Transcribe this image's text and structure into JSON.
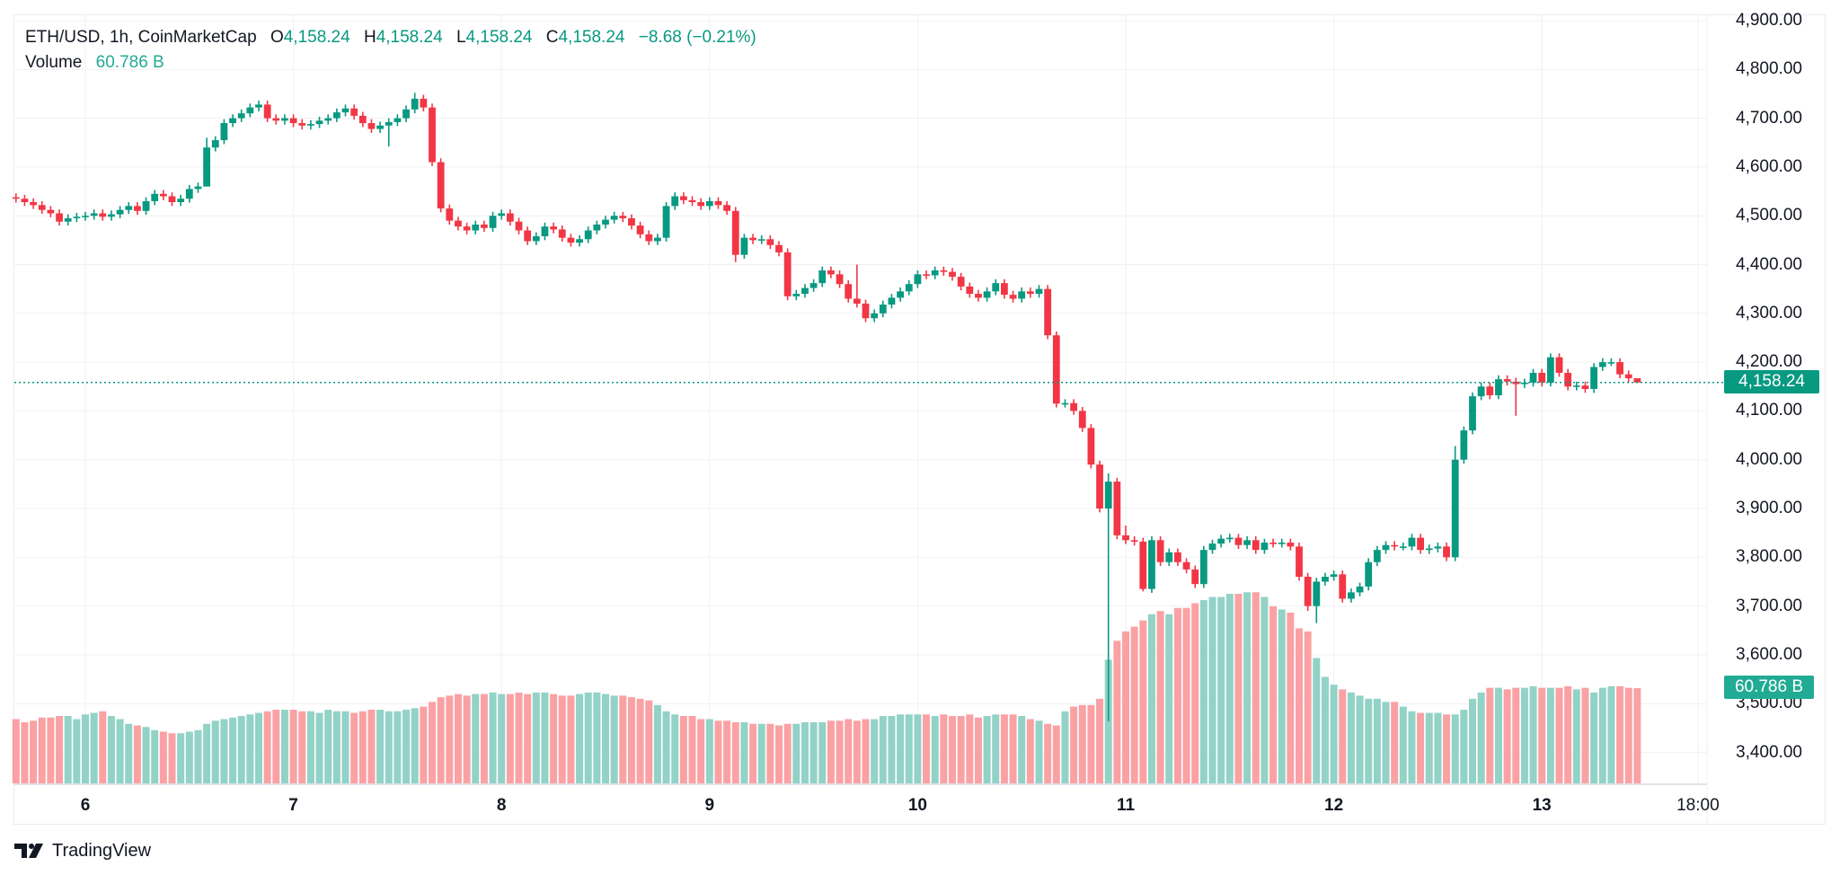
{
  "legend": {
    "symbol": "ETH/USD, 1h, CoinMarketCap",
    "o_label": "O",
    "o_value": "4,158.24",
    "h_label": "H",
    "h_value": "4,158.24",
    "l_label": "L",
    "l_value": "4,158.24",
    "c_label": "C",
    "c_value": "4,158.24",
    "change": "−8.68 (−0.21%)",
    "volume_label": "Volume",
    "volume_value": "60.786 B"
  },
  "price_tag": "4,158.24",
  "volume_tag": "60.786 B",
  "branding": "TradingView",
  "colors": {
    "up": "#089981",
    "down": "#f23645",
    "vol_up": "#92d2c7",
    "vol_down": "#faa1a4",
    "grid": "#f0f1f4",
    "last_price_line": "#089981"
  },
  "chart_data": {
    "type": "candlestick",
    "title": "ETH/USD, 1h, CoinMarketCap",
    "interval": "1h",
    "ylim": [
      3340,
      4910
    ],
    "y_ticks": [
      "4,900.00",
      "4,800.00",
      "4,700.00",
      "4,600.00",
      "4,500.00",
      "4,400.00",
      "4,300.00",
      "4,200.00",
      "4,100.00",
      "4,000.00",
      "3,900.00",
      "3,800.00",
      "3,700.00",
      "3,600.00",
      "3,500.00",
      "3,400.00"
    ],
    "y_tick_values": [
      4900,
      4800,
      4700,
      4600,
      4500,
      4400,
      4300,
      4200,
      4100,
      4000,
      3900,
      3800,
      3700,
      3600,
      3500,
      3400
    ],
    "x_ticks": [
      {
        "label": "6",
        "index": 8
      },
      {
        "label": "7",
        "index": 32
      },
      {
        "label": "8",
        "index": 56
      },
      {
        "label": "9",
        "index": 80
      },
      {
        "label": "10",
        "index": 104
      },
      {
        "label": "11",
        "index": 128
      },
      {
        "label": "12",
        "index": 152
      },
      {
        "label": "13",
        "index": 176
      },
      {
        "label": "18:00",
        "index": 194
      }
    ],
    "last_price": 4158.24,
    "grid": true,
    "close": [
      4535,
      4528,
      4522,
      4512,
      4505,
      4488,
      4495,
      4498,
      4500,
      4505,
      4498,
      4503,
      4512,
      4520,
      4510,
      4530,
      4545,
      4540,
      4528,
      4535,
      4555,
      4560,
      4640,
      4655,
      4690,
      4700,
      4710,
      4722,
      4728,
      4700,
      4695,
      4700,
      4690,
      4685,
      4688,
      4695,
      4700,
      4712,
      4720,
      4705,
      4690,
      4678,
      4685,
      4692,
      4700,
      4718,
      4740,
      4722,
      4610,
      4515,
      4490,
      4478,
      4470,
      4482,
      4475,
      4500,
      4505,
      4488,
      4470,
      4448,
      4458,
      4478,
      4472,
      4455,
      4445,
      4452,
      4470,
      4482,
      4492,
      4500,
      4495,
      4480,
      4462,
      4448,
      4455,
      4520,
      4540,
      4532,
      4528,
      4520,
      4530,
      4522,
      4510,
      4420,
      4455,
      4450,
      4452,
      4440,
      4425,
      4335,
      4340,
      4352,
      4362,
      4388,
      4380,
      4360,
      4330,
      4320,
      4290,
      4300,
      4318,
      4332,
      4345,
      4360,
      4380,
      4378,
      4388,
      4385,
      4375,
      4355,
      4340,
      4332,
      4345,
      4362,
      4338,
      4330,
      4345,
      4340,
      4350,
      4255,
      4115,
      4116,
      4100,
      4065,
      3990,
      3900,
      3955,
      3845,
      3835,
      3832,
      3735,
      3835,
      3790,
      3810,
      3790,
      3775,
      3745,
      3815,
      3828,
      3838,
      3840,
      3825,
      3835,
      3815,
      3830,
      3828,
      3830,
      3822,
      3760,
      3700,
      3750,
      3760,
      3765,
      3715,
      3728,
      3740,
      3790,
      3815,
      3825,
      3822,
      3822,
      3840,
      3815,
      3818,
      3822,
      3800,
      4000,
      4060,
      4130,
      4150,
      4132,
      4165,
      4160,
      4155,
      4158,
      4178,
      4158,
      4210,
      4178,
      4150,
      4152,
      4145,
      4190,
      4200,
      4200,
      4175,
      4166.92,
      4158.24
    ],
    "open_first": 4538,
    "high_extra": 8,
    "low_extra": 8,
    "wick_overrides": [
      {
        "index": 22,
        "high": 4660,
        "low": 4560
      },
      {
        "index": 46,
        "high": 4752
      },
      {
        "index": 43,
        "low": 4642
      },
      {
        "index": 83,
        "low": 4405
      },
      {
        "index": 97,
        "high": 4400
      },
      {
        "index": 126,
        "high": 3972,
        "low": 3464
      },
      {
        "index": 128,
        "high": 3865
      },
      {
        "index": 130,
        "low": 3730
      },
      {
        "index": 149,
        "low": 3690
      },
      {
        "index": 150,
        "low": 3665
      },
      {
        "index": 166,
        "high": 4028
      },
      {
        "index": 173,
        "low": 4090
      },
      {
        "index": 177,
        "high": 4218
      },
      {
        "index": 187,
        "high": 4158.24,
        "low": 4158.24
      }
    ],
    "volume_unit": "B",
    "volume": [
      41,
      39,
      40,
      42,
      42,
      43,
      43,
      41,
      44,
      45,
      46,
      43,
      41,
      38,
      37,
      36,
      34,
      33,
      32,
      32,
      33,
      34,
      38,
      40,
      41,
      42,
      43,
      44,
      45,
      46,
      47,
      47,
      47,
      46,
      46,
      45,
      47,
      46,
      46,
      45,
      46,
      47,
      47,
      46,
      46,
      47,
      48,
      49,
      52,
      55,
      56,
      57,
      56,
      57,
      57,
      58,
      57,
      57,
      58,
      57,
      58,
      58,
      57,
      56,
      56,
      57,
      58,
      58,
      57,
      56,
      56,
      55,
      54,
      53,
      50,
      46,
      44,
      43,
      43,
      41,
      41,
      40,
      40,
      39,
      39,
      38,
      38,
      38,
      37,
      38,
      38,
      39,
      39,
      39,
      40,
      40,
      41,
      40,
      41,
      41,
      43,
      43,
      44,
      44,
      44,
      44,
      43,
      44,
      43,
      43,
      44,
      42,
      43,
      44,
      44,
      44,
      43,
      41,
      40,
      38,
      37,
      46,
      49,
      50,
      50,
      54,
      79,
      91,
      97,
      100,
      104,
      108,
      110,
      108,
      112,
      112,
      115,
      117,
      119,
      119,
      121,
      121,
      122,
      122,
      119,
      113,
      111,
      109,
      99,
      97,
      80,
      68,
      63,
      60,
      58,
      56,
      54,
      54,
      52,
      52,
      49,
      46,
      45,
      45,
      45,
      44,
      44,
      47,
      54,
      58,
      61,
      61,
      60,
      61,
      61,
      62,
      61,
      61,
      61,
      62,
      60,
      61,
      58,
      61,
      62,
      62,
      61,
      60.786
    ]
  }
}
